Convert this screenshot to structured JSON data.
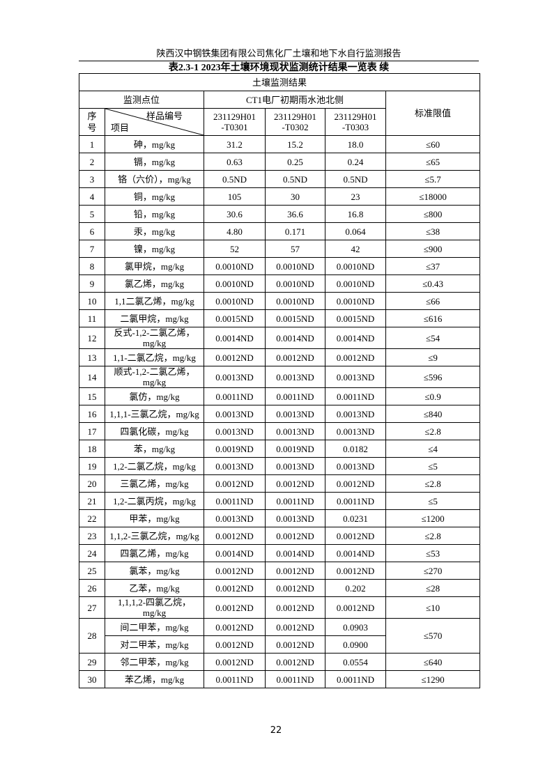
{
  "header": {
    "report": "陕西汉中钢铁集团有限公司焦化厂土壤和地下水自行监测报告",
    "title": "表2.3-1  2023年土壤环境现状监测统计结果一览表 续"
  },
  "table": {
    "caption": "土壤监测结果",
    "site_label": "监测点位",
    "site": "CT1电厂初期雨水池北侧",
    "no_label": "序号",
    "sample_label": "样品编号",
    "item_label": "项目",
    "limit_label": "标准限值",
    "samples": [
      [
        "231129H01",
        "-T0301"
      ],
      [
        "231129H01",
        "-T0302"
      ],
      [
        "231129H01",
        "-T0303"
      ]
    ],
    "rows": [
      {
        "no": "1",
        "item": "砷，mg/kg",
        "values": [
          "31.2",
          "15.2",
          "18.0"
        ],
        "limit": "≤60"
      },
      {
        "no": "2",
        "item": "镉，mg/kg",
        "values": [
          "0.63",
          "0.25",
          "0.24"
        ],
        "limit": "≤65"
      },
      {
        "no": "3",
        "item": "铬（六价），mg/kg",
        "values": [
          "0.5ND",
          "0.5ND",
          "0.5ND"
        ],
        "limit": "≤5.7"
      },
      {
        "no": "4",
        "item": "铜，mg/kg",
        "values": [
          "105",
          "30",
          "23"
        ],
        "limit": "≤18000"
      },
      {
        "no": "5",
        "item": "铅，mg/kg",
        "values": [
          "30.6",
          "36.6",
          "16.8"
        ],
        "limit": "≤800"
      },
      {
        "no": "6",
        "item": "汞，mg/kg",
        "values": [
          "4.80",
          "0.171",
          "0.064"
        ],
        "limit": "≤38"
      },
      {
        "no": "7",
        "item": "镍，mg/kg",
        "values": [
          "52",
          "57",
          "42"
        ],
        "limit": "≤900"
      },
      {
        "no": "8",
        "item": "氯甲烷，mg/kg",
        "values": [
          "0.0010ND",
          "0.0010ND",
          "0.0010ND"
        ],
        "limit": "≤37"
      },
      {
        "no": "9",
        "item": "氯乙烯，mg/kg",
        "values": [
          "0.0010ND",
          "0.0010ND",
          "0.0010ND"
        ],
        "limit": "≤0.43"
      },
      {
        "no": "10",
        "item": "1,1二氯乙烯，mg/kg",
        "values": [
          "0.0010ND",
          "0.0010ND",
          "0.0010ND"
        ],
        "limit": "≤66"
      },
      {
        "no": "11",
        "item": "二氯甲烷，mg/kg",
        "values": [
          "0.0015ND",
          "0.0015ND",
          "0.0015ND"
        ],
        "limit": "≤616"
      },
      {
        "no": "12",
        "item": "反式-1,2-二氯乙烯，mg/kg",
        "values": [
          "0.0014ND",
          "0.0014ND",
          "0.0014ND"
        ],
        "limit": "≤54"
      },
      {
        "no": "13",
        "item": "1,1-二氯乙烷，mg/kg",
        "values": [
          "0.0012ND",
          "0.0012ND",
          "0.0012ND"
        ],
        "limit": "≤9"
      },
      {
        "no": "14",
        "item": "顺式-1,2-二氯乙烯，mg/kg",
        "values": [
          "0.0013ND",
          "0.0013ND",
          "0.0013ND"
        ],
        "limit": "≤596"
      },
      {
        "no": "15",
        "item": "氯仿，mg/kg",
        "values": [
          "0.0011ND",
          "0.0011ND",
          "0.0011ND"
        ],
        "limit": "≤0.9"
      },
      {
        "no": "16",
        "item": "1,1,1-三氯乙烷，mg/kg",
        "values": [
          "0.0013ND",
          "0.0013ND",
          "0.0013ND"
        ],
        "limit": "≤840"
      },
      {
        "no": "17",
        "item": "四氯化碳，mg/kg",
        "values": [
          "0.0013ND",
          "0.0013ND",
          "0.0013ND"
        ],
        "limit": "≤2.8"
      },
      {
        "no": "18",
        "item": "苯，mg/kg",
        "values": [
          "0.0019ND",
          "0.0019ND",
          "0.0182"
        ],
        "limit": "≤4"
      },
      {
        "no": "19",
        "item": "1,2-二氯乙烷，mg/kg",
        "values": [
          "0.0013ND",
          "0.0013ND",
          "0.0013ND"
        ],
        "limit": "≤5"
      },
      {
        "no": "20",
        "item": "三氯乙烯，mg/kg",
        "values": [
          "0.0012ND",
          "0.0012ND",
          "0.0012ND"
        ],
        "limit": "≤2.8"
      },
      {
        "no": "21",
        "item": "1,2-二氯丙烷，mg/kg",
        "values": [
          "0.0011ND",
          "0.0011ND",
          "0.0011ND"
        ],
        "limit": "≤5"
      },
      {
        "no": "22",
        "item": "甲苯，mg/kg",
        "values": [
          "0.0013ND",
          "0.0013ND",
          "0.0231"
        ],
        "limit": "≤1200"
      },
      {
        "no": "23",
        "item": "1,1,2-三氯乙烷，mg/kg",
        "values": [
          "0.0012ND",
          "0.0012ND",
          "0.0012ND"
        ],
        "limit": "≤2.8"
      },
      {
        "no": "24",
        "item": "四氯乙烯，mg/kg",
        "values": [
          "0.0014ND",
          "0.0014ND",
          "0.0014ND"
        ],
        "limit": "≤53"
      },
      {
        "no": "25",
        "item": "氯苯，mg/kg",
        "values": [
          "0.0012ND",
          "0.0012ND",
          "0.0012ND"
        ],
        "limit": "≤270"
      },
      {
        "no": "26",
        "item": "乙苯，mg/kg",
        "values": [
          "0.0012ND",
          "0.0012ND",
          "0.202"
        ],
        "limit": "≤28"
      },
      {
        "no": "27",
        "item": "1,1,1,2-四氯乙烷，mg/kg",
        "values": [
          "0.0012ND",
          "0.0012ND",
          "0.0012ND"
        ],
        "limit": "≤10"
      },
      {
        "no": "28",
        "items": [
          {
            "item": "间二甲苯，mg/kg",
            "values": [
              "0.0012ND",
              "0.0012ND",
              "0.0903"
            ]
          },
          {
            "item": "对二甲苯，mg/kg",
            "values": [
              "0.0012ND",
              "0.0012ND",
              "0.0900"
            ]
          }
        ],
        "limit": "≤570"
      },
      {
        "no": "29",
        "item": "邻二甲苯，mg/kg",
        "values": [
          "0.0012ND",
          "0.0012ND",
          "0.0554"
        ],
        "limit": "≤640"
      },
      {
        "no": "30",
        "item": "苯乙烯，mg/kg",
        "values": [
          "0.0011ND",
          "0.0011ND",
          "0.0011ND"
        ],
        "limit": "≤1290"
      }
    ]
  },
  "page_number": "22"
}
